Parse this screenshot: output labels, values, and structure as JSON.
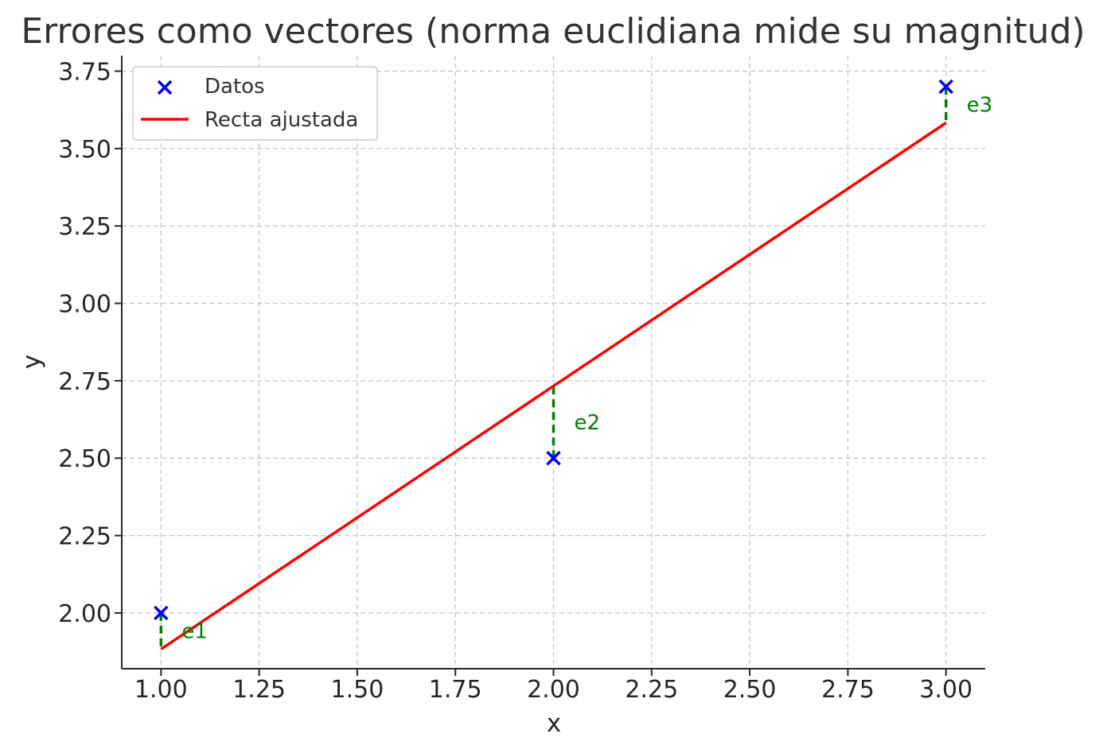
{
  "chart_data": {
    "type": "scatter",
    "title": "Errores como vectores (norma euclidiana mide su magnitud)",
    "xlabel": "x",
    "ylabel": "y",
    "xlim": [
      0.9,
      3.1
    ],
    "ylim": [
      1.82,
      3.8
    ],
    "x_ticks": [
      1.0,
      1.25,
      1.5,
      1.75,
      2.0,
      2.25,
      2.5,
      2.75,
      3.0
    ],
    "x_tick_labels": [
      "1.00",
      "1.25",
      "1.50",
      "1.75",
      "2.00",
      "2.25",
      "2.50",
      "2.75",
      "3.00"
    ],
    "y_ticks": [
      2.0,
      2.25,
      2.5,
      2.75,
      3.0,
      3.25,
      3.5,
      3.75
    ],
    "y_tick_labels": [
      "2.00",
      "2.25",
      "2.50",
      "2.75",
      "3.00",
      "3.25",
      "3.50",
      "3.75"
    ],
    "grid": true,
    "legend_position": "top-left",
    "series": [
      {
        "name": "Datos",
        "type": "scatter",
        "marker": "x",
        "color": "#0000ff",
        "x": [
          1.0,
          2.0,
          3.0
        ],
        "y": [
          2.0,
          2.5,
          3.7
        ]
      },
      {
        "name": "Recta ajustada",
        "type": "line",
        "color": "#ff0000",
        "x": [
          1.0,
          3.0
        ],
        "y": [
          1.883,
          3.583
        ]
      }
    ],
    "errors": [
      {
        "label": "e1",
        "x": 1.0,
        "y_data": 2.0,
        "y_fit": 1.883
      },
      {
        "label": "e2",
        "x": 2.0,
        "y_data": 2.5,
        "y_fit": 2.733
      },
      {
        "label": "e3",
        "x": 3.0,
        "y_data": 3.7,
        "y_fit": 3.583
      }
    ],
    "error_color": "#008000"
  }
}
